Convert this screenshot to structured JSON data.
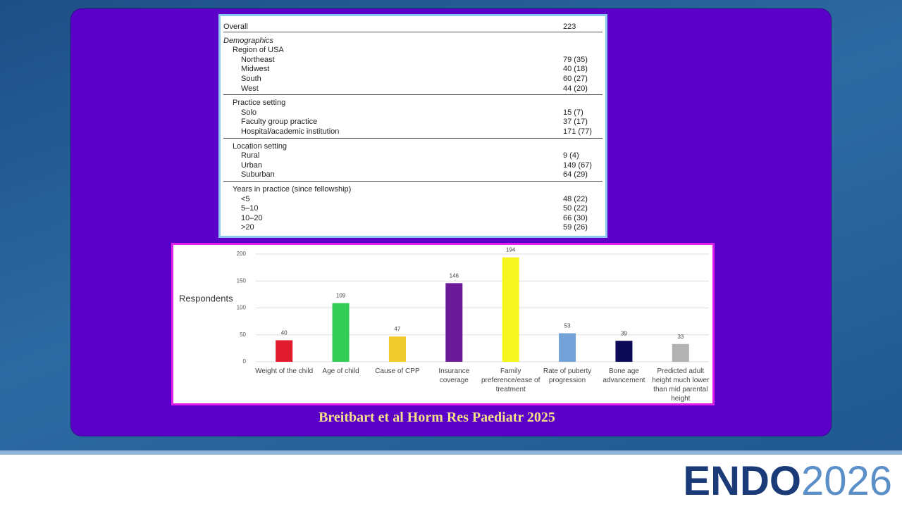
{
  "table": {
    "overall": [
      "Overall",
      "223"
    ],
    "section": "Demographics",
    "groups": [
      {
        "heading": "Region of USA",
        "rows": [
          [
            "Northeast",
            "79 (35)"
          ],
          [
            "Midwest",
            "40 (18)"
          ],
          [
            "South",
            "60 (27)"
          ],
          [
            "West",
            "44 (20)"
          ]
        ]
      },
      {
        "heading": "Practice setting",
        "rows": [
          [
            "Solo",
            "15 (7)"
          ],
          [
            "Faculty group practice",
            "37 (17)"
          ],
          [
            "Hospital/academic institution",
            "171 (77)"
          ]
        ]
      },
      {
        "heading": "Location setting",
        "rows": [
          [
            "Rural",
            "9 (4)"
          ],
          [
            "Urban",
            "149 (67)"
          ],
          [
            "Suburban",
            "64 (29)"
          ]
        ]
      },
      {
        "heading": "Years in practice (since fellowship)",
        "rows": [
          [
            "<5",
            "48 (22)"
          ],
          [
            "5–10",
            "50 (22)"
          ],
          [
            "10–20",
            "66 (30)"
          ],
          [
            ">20",
            "59 (26)"
          ]
        ]
      }
    ]
  },
  "chart_data": {
    "type": "bar",
    "y_label": "Respondents",
    "categories": [
      "Weight of the child",
      "Age of child",
      "Cause of CPP",
      "Insurance coverage",
      "Family preference/ease of treatment",
      "Rate of puberty progression",
      "Bone age advancement",
      "Predicted adult height much lower than mid parental height"
    ],
    "values": [
      40,
      109,
      47,
      146,
      194,
      53,
      39,
      33
    ],
    "colors": [
      "#e01b2e",
      "#33cc55",
      "#efcb2e",
      "#6b1a98",
      "#f6f51e",
      "#72a2d8",
      "#0b0b58",
      "#b2b2b2"
    ],
    "ylim": [
      0,
      200
    ],
    "yticks": [
      0,
      50,
      100,
      150,
      200
    ],
    "grid": true
  },
  "caption": "Breitbart et al Horm Res Paediatr 2025",
  "logo": {
    "brand": "ENDO",
    "year": "2026"
  }
}
